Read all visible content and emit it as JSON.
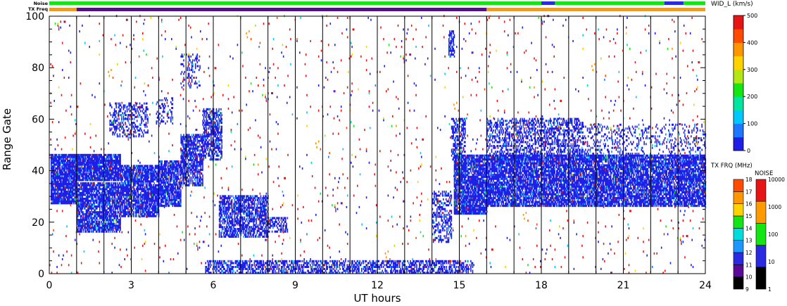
{
  "chart_data": {
    "type": "heatmap",
    "xlabel": "UT hours",
    "ylabel": "Range Gate",
    "xlim": [
      0,
      24
    ],
    "ylim": [
      0,
      100
    ],
    "x_ticks": [
      "0",
      "3",
      "6",
      "9",
      "12",
      "15",
      "18",
      "21",
      "24"
    ],
    "y_ticks": [
      "0",
      "20",
      "40",
      "60",
      "80",
      "100"
    ],
    "hour_gridlines": [
      1,
      2,
      3,
      4,
      5,
      6,
      7,
      8,
      9,
      10,
      11,
      12,
      13,
      14,
      15,
      16,
      17,
      18,
      19,
      20,
      21,
      22,
      23
    ],
    "top_bars": {
      "noise_label": "Noise",
      "txfreq_label": "TX Freq",
      "noise_segments": [
        {
          "from": 0,
          "to": 18,
          "color": "#14e614"
        },
        {
          "from": 18,
          "to": 18.5,
          "color": "#2a2ae0"
        },
        {
          "from": 18.5,
          "to": 22.5,
          "color": "#14e614"
        },
        {
          "from": 22.5,
          "to": 23.2,
          "color": "#2a2ae0"
        },
        {
          "from": 23.2,
          "to": 24,
          "color": "#14e614"
        }
      ],
      "txfreq_segments": [
        {
          "from": 0,
          "to": 1,
          "color": "#ff9a00"
        },
        {
          "from": 1,
          "to": 16,
          "color": "#5a0a96"
        },
        {
          "from": 16,
          "to": 24,
          "color": "#ff9a00"
        }
      ]
    },
    "scatter_regions": [
      {
        "t0": 0.05,
        "t1": 1.0,
        "g0": 27,
        "g1": 46,
        "density": 0.9
      },
      {
        "t0": 1.0,
        "t1": 2.6,
        "g0": 16,
        "g1": 35,
        "density": 0.8
      },
      {
        "t0": 1.0,
        "t1": 2.6,
        "g0": 36,
        "g1": 46,
        "density": 0.9
      },
      {
        "t0": 2.6,
        "t1": 4.0,
        "g0": 22,
        "g1": 42,
        "density": 0.8
      },
      {
        "t0": 4.0,
        "t1": 4.8,
        "g0": 26,
        "g1": 44,
        "density": 0.8
      },
      {
        "t0": 4.8,
        "t1": 5.6,
        "g0": 34,
        "g1": 54,
        "density": 0.7
      },
      {
        "t0": 5.6,
        "t1": 6.3,
        "g0": 44,
        "g1": 64,
        "density": 0.6
      },
      {
        "t0": 2.2,
        "t1": 3.6,
        "g0": 53,
        "g1": 66,
        "density": 0.35
      },
      {
        "t0": 3.9,
        "t1": 4.5,
        "g0": 58,
        "g1": 68,
        "density": 0.3
      },
      {
        "t0": 4.8,
        "t1": 5.5,
        "g0": 72,
        "g1": 85,
        "density": 0.25
      },
      {
        "t0": 6.2,
        "t1": 8.0,
        "g0": 14,
        "g1": 30,
        "density": 0.65
      },
      {
        "t0": 8.0,
        "t1": 8.7,
        "g0": 16,
        "g1": 22,
        "density": 0.5
      },
      {
        "t0": 5.7,
        "t1": 15.5,
        "g0": 0,
        "g1": 5,
        "density": 0.55
      },
      {
        "t0": 14.0,
        "t1": 14.7,
        "g0": 12,
        "g1": 32,
        "density": 0.45
      },
      {
        "t0": 14.8,
        "t1": 16.0,
        "g0": 23,
        "g1": 46,
        "density": 0.85
      },
      {
        "t0": 14.7,
        "t1": 15.2,
        "g0": 44,
        "g1": 60,
        "density": 0.5
      },
      {
        "t0": 16.0,
        "t1": 24.0,
        "g0": 26,
        "g1": 46,
        "density": 0.8
      },
      {
        "t0": 16.0,
        "t1": 19.5,
        "g0": 44,
        "g1": 60,
        "density": 0.45
      },
      {
        "t0": 19.5,
        "t1": 24.0,
        "g0": 44,
        "g1": 58,
        "density": 0.2
      },
      {
        "t0": 14.6,
        "t1": 14.8,
        "g0": 84,
        "g1": 94,
        "density": 0.6
      },
      {
        "t0": 0.0,
        "t1": 24.0,
        "g0": 0,
        "g1": 100,
        "density": 0.015
      }
    ],
    "legends": [
      {
        "title": "WID_L (km/s)",
        "ticks": [
          "0",
          "100",
          "200",
          "300",
          "400",
          "500"
        ]
      },
      {
        "title": "TX FRQ (MHz)",
        "ticks": [
          "9",
          "10",
          "11",
          "12",
          "13",
          "14",
          "15",
          "16",
          "17",
          "18"
        ]
      },
      {
        "title": "NOISE",
        "ticks": [
          "1",
          "10",
          "100",
          "1000",
          "10000"
        ]
      }
    ],
    "palette": {
      "velocity": [
        "#1e1ee6",
        "#1e78ff",
        "#00c8ff",
        "#00e6a0",
        "#14e614",
        "#b4e614",
        "#ffd200",
        "#ff9600",
        "#ff4b00",
        "#e61414"
      ],
      "freq": [
        "#000000",
        "#5a0a96",
        "#2a2ae0",
        "#1e96ff",
        "#00dcdc",
        "#14e614",
        "#ffd200",
        "#ff9600",
        "#ff4b00",
        "#e61414"
      ],
      "noise": [
        "#000000",
        "#2a2ae0",
        "#14e614",
        "#ff9a00",
        "#e61414"
      ]
    }
  }
}
